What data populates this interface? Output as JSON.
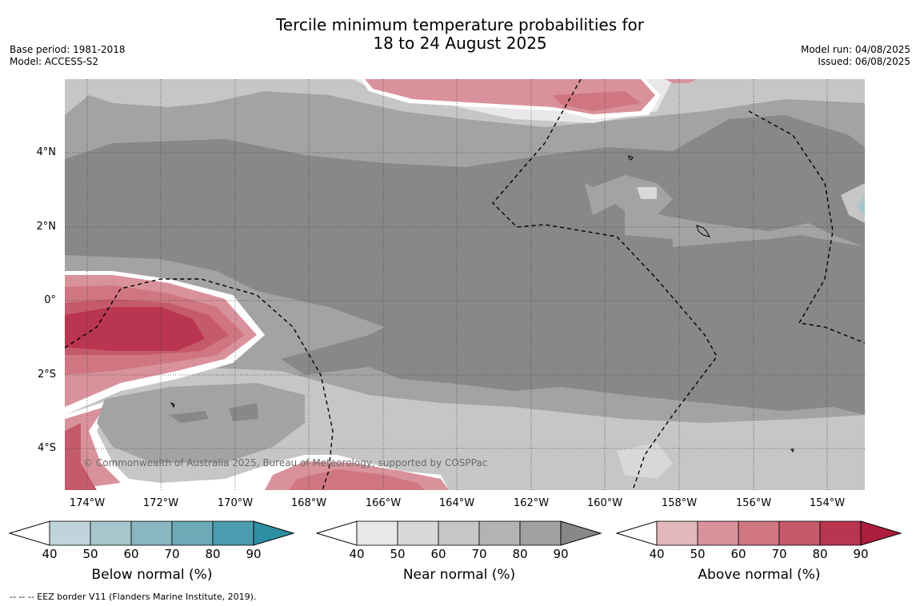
{
  "title_line1": "Tercile minimum temperature probabilities for",
  "title_line2": "18 to 24 August 2025",
  "left_meta": {
    "base_period": "Base period: 1981-2018",
    "model": "Model: ACCESS-S2"
  },
  "right_meta": {
    "model_run": "Model run: 04/08/2025",
    "issued": "Issued: 06/08/2025"
  },
  "lat_labels": [
    "4°N",
    "2°N",
    "0°",
    "2°S",
    "4°S"
  ],
  "lon_labels": [
    "174°W",
    "172°W",
    "170°W",
    "168°W",
    "166°W",
    "164°W",
    "162°W",
    "160°W",
    "158°W",
    "156°W",
    "154°W"
  ],
  "copyright": "© Commonwealth of Australia 2025, Bureau of Meteorology, supported by COSPPac",
  "footnote": "-- -- -- EEZ border V11 (Flanders Marine Institute, 2019).",
  "colorbars": [
    {
      "title": "Below normal (%)",
      "ticks": [
        "40",
        "50",
        "60",
        "70",
        "80",
        "90"
      ],
      "colors": [
        "#bfd5db",
        "#a5c6cc",
        "#88b6c1",
        "#6caab8",
        "#4b9cae",
        "#2e8ea2"
      ]
    },
    {
      "title": "Near normal (%)",
      "ticks": [
        "40",
        "50",
        "60",
        "70",
        "80",
        "90"
      ],
      "colors": [
        "#e8e8e8",
        "#d8d8d8",
        "#c6c6c6",
        "#b3b3b3",
        "#a1a1a1",
        "#888888"
      ]
    },
    {
      "title": "Above normal (%)",
      "ticks": [
        "40",
        "50",
        "60",
        "70",
        "80",
        "90"
      ],
      "colors": [
        "#e3b8bd",
        "#d9929b",
        "#cf7681",
        "#c55a6a",
        "#b93550",
        "#ac1e3c"
      ]
    }
  ]
}
